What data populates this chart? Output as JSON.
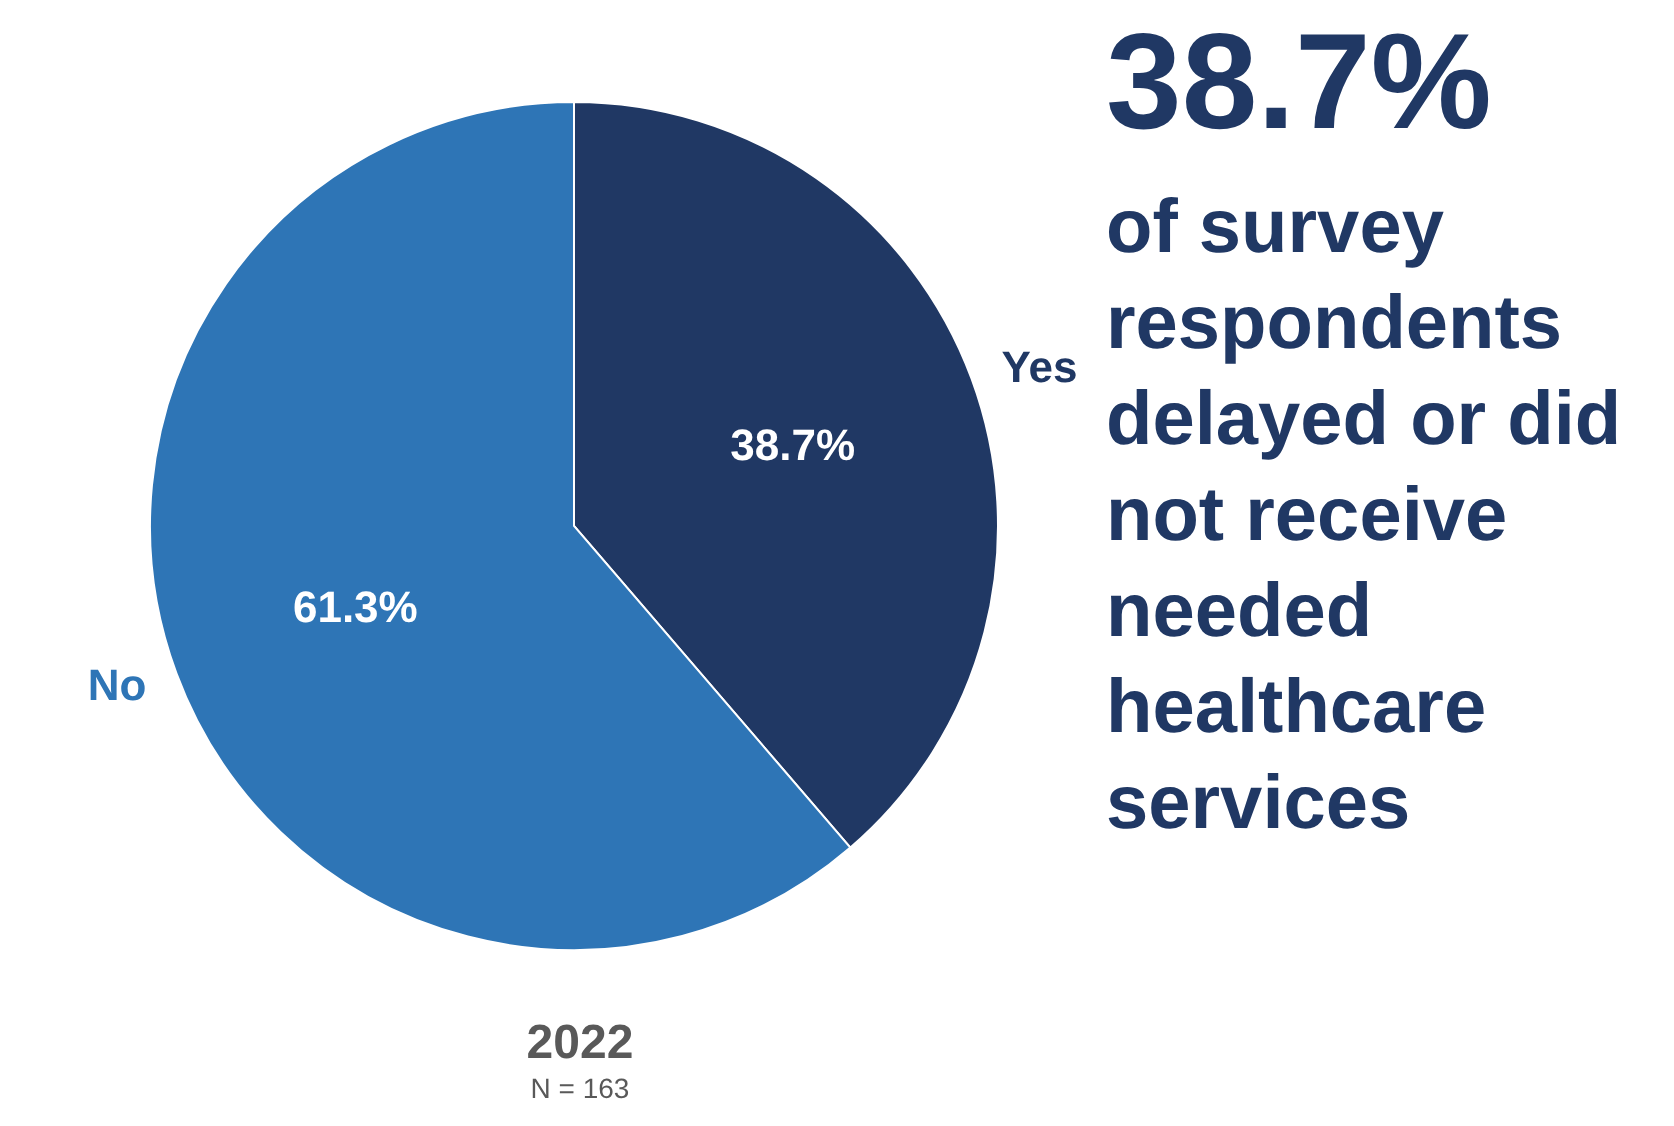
{
  "chart_data": {
    "type": "pie",
    "title": "2022",
    "subtitle": "N = 163",
    "categories": [
      "Yes",
      "No"
    ],
    "values": [
      38.7,
      61.3
    ],
    "colors": [
      "#203864",
      "#2e75b6"
    ],
    "value_labels": [
      "38.7%",
      "61.3%"
    ],
    "annotations": [
      "38.7%",
      "of survey respondents delayed or did not receive needed healthcare services"
    ]
  }
}
